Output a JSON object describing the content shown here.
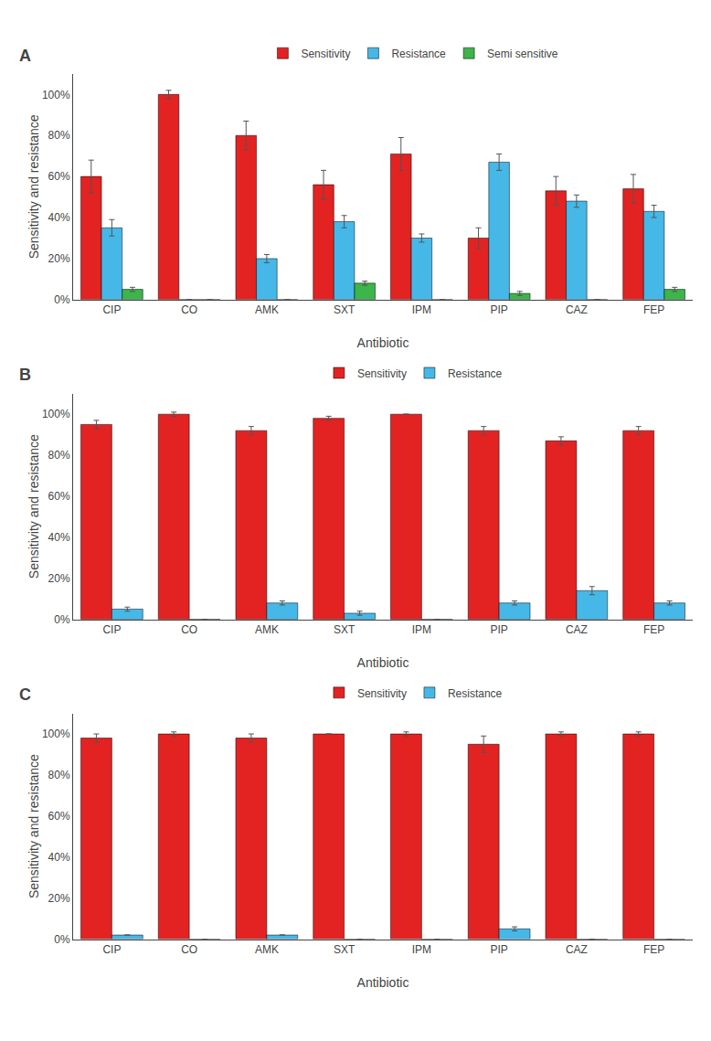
{
  "chart_data": [
    {
      "type": "bar",
      "title": "A",
      "categories": [
        "CIP",
        "CO",
        "AMK",
        "SXT",
        "IPM",
        "PIP",
        "CAZ",
        "FEP"
      ],
      "series": [
        {
          "name": "Sensitivity",
          "color": "#e32222",
          "values": [
            60,
            100,
            80,
            56,
            71,
            30,
            53,
            54
          ],
          "error": [
            8,
            2,
            7,
            7,
            8,
            5,
            7,
            7
          ]
        },
        {
          "name": "Resistance",
          "color": "#45b8e8",
          "values": [
            35,
            0,
            20,
            38,
            30,
            67,
            48,
            43
          ],
          "error": [
            4,
            0,
            2,
            3,
            2,
            4,
            3,
            3
          ]
        },
        {
          "name": "Semi sensitive",
          "color": "#3cb54a",
          "values": [
            5,
            0,
            0,
            8,
            0,
            3,
            0,
            5
          ],
          "error": [
            1,
            0,
            0,
            1,
            0,
            1,
            0,
            1
          ]
        }
      ],
      "xlabel": "Antibiotic",
      "ylabel": "Sensitivity and resistance",
      "ylim": [
        0,
        110
      ],
      "yticks": [
        {
          "value": 0,
          "label": "0%"
        },
        {
          "value": 20,
          "label": "20%"
        },
        {
          "value": 40,
          "label": "40%"
        },
        {
          "value": 60,
          "label": "60%"
        },
        {
          "value": 80,
          "label": "80%"
        },
        {
          "value": 100,
          "label": "100%"
        }
      ],
      "grid": false,
      "legend": "top"
    },
    {
      "type": "bar",
      "title": "B",
      "categories": [
        "CIP",
        "CO",
        "AMK",
        "SXT",
        "IPM",
        "PIP",
        "CAZ",
        "FEP"
      ],
      "series": [
        {
          "name": "Sensitivity",
          "color": "#e32222",
          "values": [
            95,
            100,
            92,
            98,
            100,
            92,
            87,
            92
          ],
          "error": [
            2,
            1,
            2,
            1,
            0,
            2,
            2,
            2
          ]
        },
        {
          "name": "Resistance",
          "color": "#45b8e8",
          "values": [
            5,
            0,
            8,
            3,
            0,
            8,
            14,
            8
          ],
          "error": [
            1,
            0,
            1,
            1,
            0,
            1,
            2,
            1
          ]
        }
      ],
      "xlabel": "Antibiotic",
      "ylabel": "Sensitivity and resistance",
      "ylim": [
        0,
        110
      ],
      "yticks": [
        {
          "value": 0,
          "label": "0%"
        },
        {
          "value": 20,
          "label": "20%"
        },
        {
          "value": 40,
          "label": "40%"
        },
        {
          "value": 60,
          "label": "60%"
        },
        {
          "value": 80,
          "label": "80%"
        },
        {
          "value": 100,
          "label": "100%"
        }
      ],
      "grid": false,
      "legend": "top"
    },
    {
      "type": "bar",
      "title": "C",
      "categories": [
        "CIP",
        "CO",
        "AMK",
        "SXT",
        "IPM",
        "PIP",
        "CAZ",
        "FEP"
      ],
      "series": [
        {
          "name": "Sensitivity",
          "color": "#e32222",
          "values": [
            98,
            100,
            98,
            100,
            100,
            95,
            100,
            100
          ],
          "error": [
            2,
            1,
            2,
            0,
            1,
            4,
            1,
            1
          ]
        },
        {
          "name": "Resistance",
          "color": "#45b8e8",
          "values": [
            2,
            0,
            2,
            0,
            0,
            5,
            0,
            0
          ],
          "error": [
            0,
            0,
            0,
            0,
            0,
            1,
            0,
            0
          ]
        }
      ],
      "xlabel": "Antibiotic",
      "ylabel": "Sensitivity and resistance",
      "ylim": [
        0,
        110
      ],
      "yticks": [
        {
          "value": 0,
          "label": "0%"
        },
        {
          "value": 20,
          "label": "20%"
        },
        {
          "value": 40,
          "label": "40%"
        },
        {
          "value": 60,
          "label": "60%"
        },
        {
          "value": 80,
          "label": "80%"
        },
        {
          "value": 100,
          "label": "100%"
        }
      ],
      "grid": false,
      "legend": "top"
    }
  ]
}
